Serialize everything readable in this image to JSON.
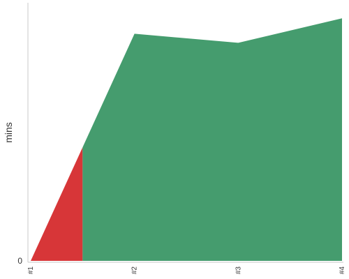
{
  "chart_data": {
    "type": "area",
    "categories": [
      "#1",
      "#2",
      "#3",
      "#4"
    ],
    "y_axis_label": "mins",
    "y_tick_labels": [
      "0"
    ],
    "ylim": [
      0,
      100
    ],
    "series": [
      {
        "values": [
          0,
          88,
          84.5,
          94
        ]
      }
    ],
    "colors": {
      "above": "#459c6e",
      "below": "#d73638"
    },
    "threshold": 44,
    "grid": false
  }
}
